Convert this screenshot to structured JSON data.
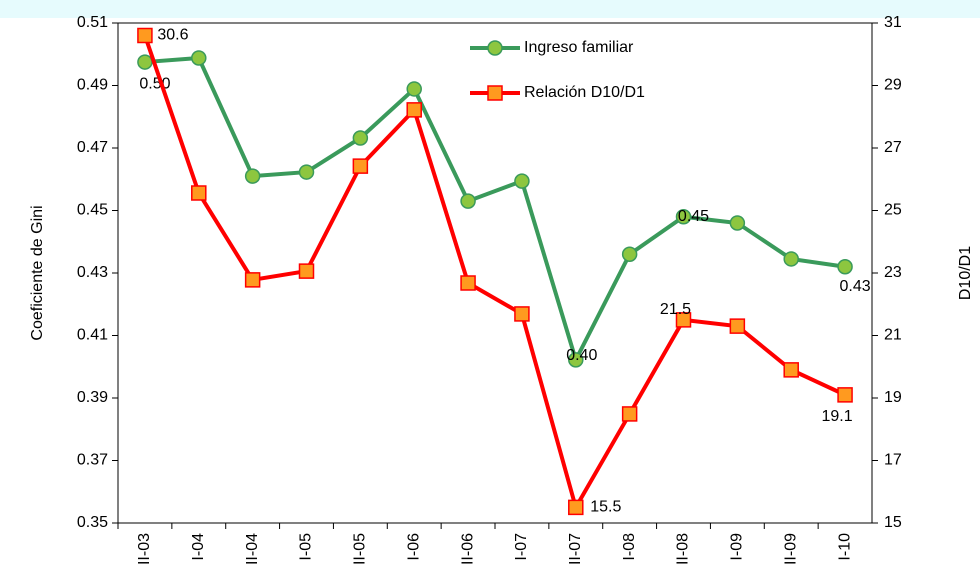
{
  "chart_data": {
    "type": "line",
    "categories": [
      "II-03",
      "I-04",
      "II-04",
      "I-05",
      "II-05",
      "I-06",
      "II-06",
      "I-07",
      "II-07",
      "I-08",
      "II-08",
      "I-09",
      "II-09",
      "I-10"
    ],
    "series": [
      {
        "name": "Ingreso familiar",
        "color": "#3a9a5b",
        "marker_color": "#8dc63f",
        "values": [
          0.4975,
          0.4988,
          0.461,
          0.4623,
          0.4732,
          0.4889,
          0.453,
          0.4594,
          0.4022,
          0.436,
          0.448,
          0.446,
          0.4345,
          0.432
        ],
        "value_labels": [
          "0.50",
          null,
          null,
          null,
          null,
          null,
          null,
          null,
          "0.40",
          null,
          "0.45",
          null,
          null,
          "0.43"
        ]
      },
      {
        "name": "Relación D10/D1",
        "color": "#ff0000",
        "marker_color": "#ff9a1f",
        "axis": "y2",
        "values": [
          30.6,
          25.56,
          22.78,
          23.06,
          26.42,
          28.22,
          22.68,
          21.69,
          15.5,
          18.49,
          21.5,
          21.3,
          19.9,
          19.1
        ],
        "value_labels": [
          "30.6",
          null,
          null,
          null,
          null,
          null,
          null,
          null,
          "15.5",
          null,
          "21.5",
          null,
          null,
          "19.1"
        ]
      }
    ],
    "ylabel": "Coeficiente de Gini",
    "y2label": "D10/D1",
    "ylim": [
      0.35,
      0.51
    ],
    "yticks": [
      0.35,
      0.37,
      0.39,
      0.41,
      0.43,
      0.45,
      0.47,
      0.49,
      0.51
    ],
    "y2lim": [
      15,
      31
    ],
    "y2ticks": [
      15,
      17,
      19,
      21,
      23,
      25,
      27,
      29,
      31
    ],
    "legend": "upper right"
  }
}
